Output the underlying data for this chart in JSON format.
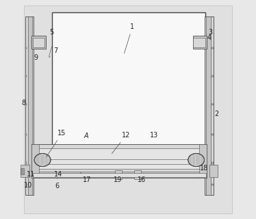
{
  "bg_color": "#e8e8e8",
  "panel_color": "#f5f5f5",
  "rail_color": "#cccccc",
  "rail_dark": "#aaaaaa",
  "mech_color": "#d8d8d8",
  "spring_color": "#c8c8c8",
  "line_color": "#444444",
  "label_color": "#222222",
  "fontsize": 7,
  "lw_main": 1.0,
  "lw_med": 0.6,
  "lw_thin": 0.4
}
